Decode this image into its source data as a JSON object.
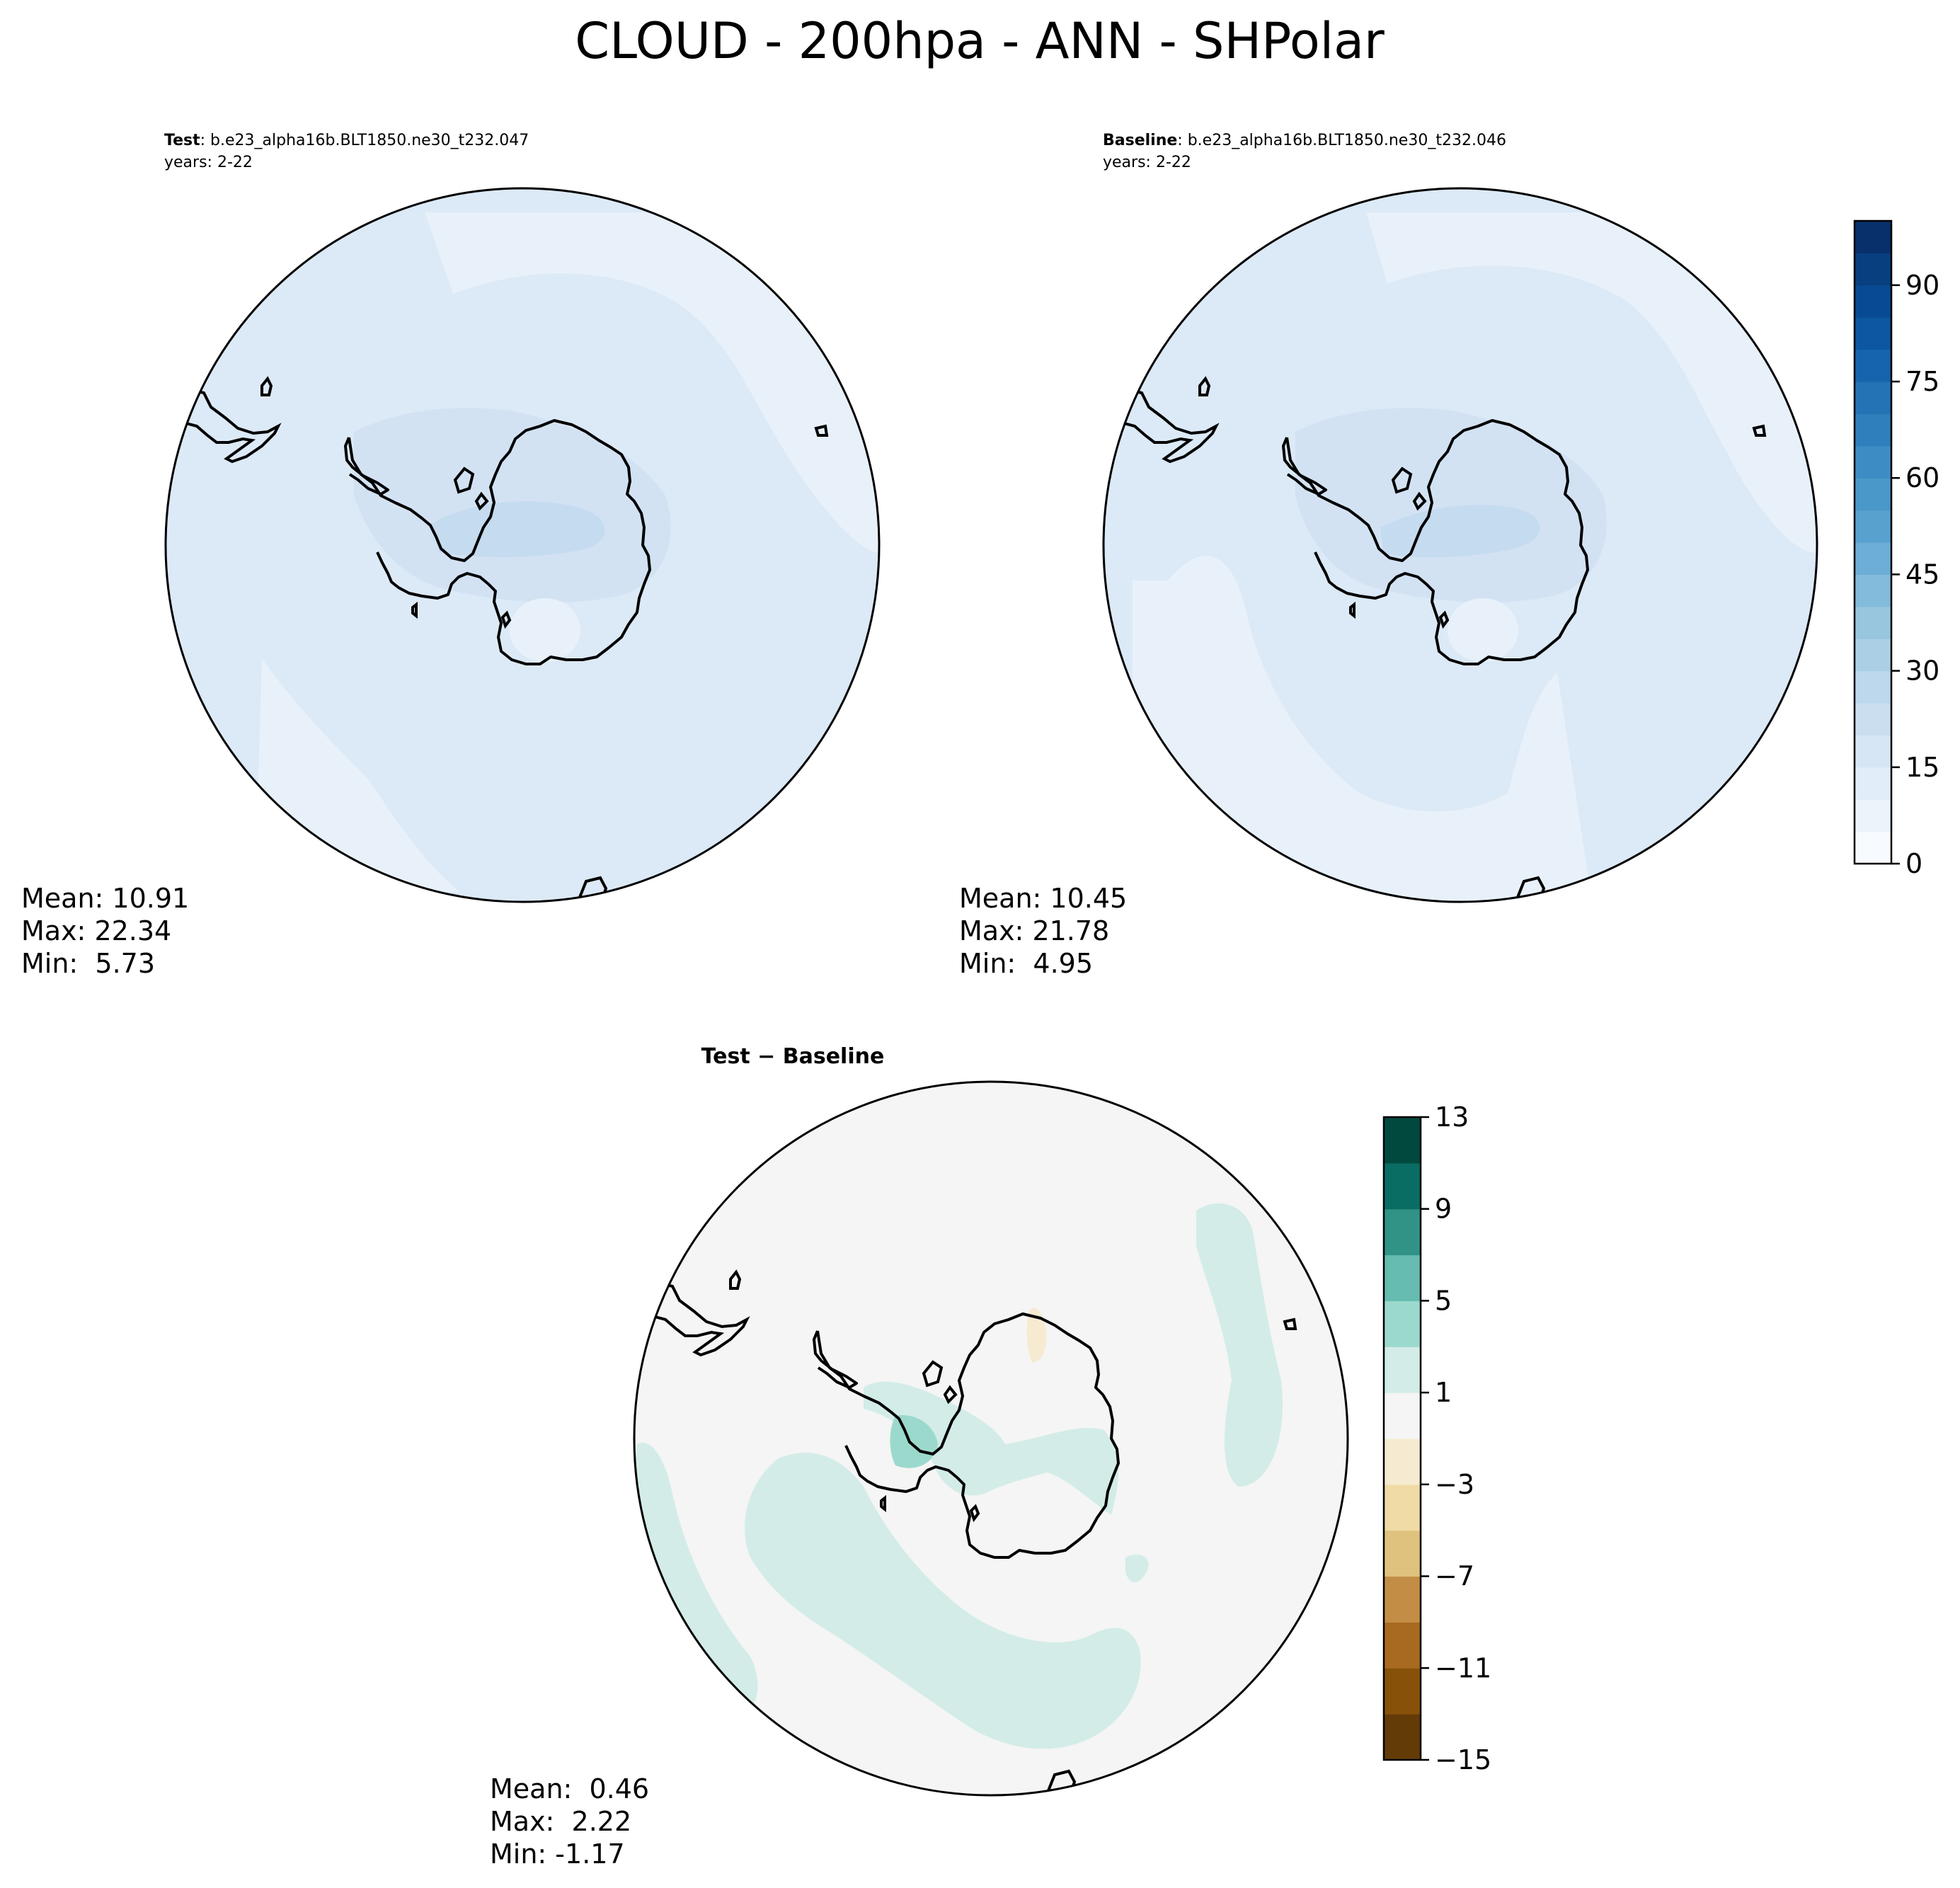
{
  "figure": {
    "title": "CLOUD - 200hpa - ANN - SHPolar"
  },
  "panels": {
    "test": {
      "label_bold": "Test",
      "label_rest": ": b.e23_alpha16b.BLT1850.ne30_t232.047",
      "years": "years: 2-22",
      "stats": {
        "mean": "Mean: 10.91",
        "max": "Max: 22.34",
        "min": "Min:  5.73"
      }
    },
    "baseline": {
      "label_bold": "Baseline",
      "label_rest": ": b.e23_alpha16b.BLT1850.ne30_t232.046",
      "years": "years: 2-22",
      "stats": {
        "mean": "Mean: 10.45",
        "max": "Max: 21.78",
        "min": "Min:  4.95"
      }
    },
    "diff": {
      "label_bold": "Test − Baseline",
      "stats": {
        "mean": "Mean:  0.46",
        "max": "Max:  2.22",
        "min": "Min: -1.17"
      }
    }
  },
  "colorbars": {
    "main": {
      "ticks": [
        "0",
        "15",
        "30",
        "45",
        "60",
        "75",
        "90"
      ],
      "tick_values": [
        0,
        15,
        30,
        45,
        60,
        75,
        90
      ],
      "range": [
        0,
        100
      ],
      "colors": [
        "#f7fbff",
        "#ebf3fb",
        "#e1edf8",
        "#d6e6f4",
        "#cadef0",
        "#bdd7ec",
        "#abd0e6",
        "#98c6df",
        "#82bbdb",
        "#6caed6",
        "#58a1cf",
        "#4a98c9",
        "#3d8dc4",
        "#2f7fbc",
        "#2373b5",
        "#1664ab",
        "#0d57a1",
        "#084b94",
        "#083f7f",
        "#08306b"
      ]
    },
    "diff": {
      "ticks": [
        "13",
        "9",
        "5",
        "1",
        "−3",
        "−7",
        "−11",
        "−15"
      ],
      "tick_values": [
        13,
        9,
        5,
        1,
        -3,
        -7,
        -11,
        -15
      ],
      "range": [
        -15,
        13
      ],
      "colors": [
        "#633b07",
        "#87510a",
        "#a86a20",
        "#c38d46",
        "#dfc27d",
        "#f0dba6",
        "#f6ebd1",
        "#f4f5f4",
        "#d3ece8",
        "#9cd9cd",
        "#66bcb0",
        "#319286",
        "#0a6d64",
        "#01493e"
      ]
    }
  },
  "map_colors": {
    "main_lightest": "#e8f1fa",
    "main_light": "#dce9f6",
    "main_mid": "#d2e2f3",
    "main_dark": "#c5dbef",
    "diff_bg": "#f4f5f4",
    "diff_pos": "#d3ece8",
    "diff_pos2": "#9cd9cd",
    "diff_neg": "#f6ebd1",
    "coast": "#000000"
  }
}
